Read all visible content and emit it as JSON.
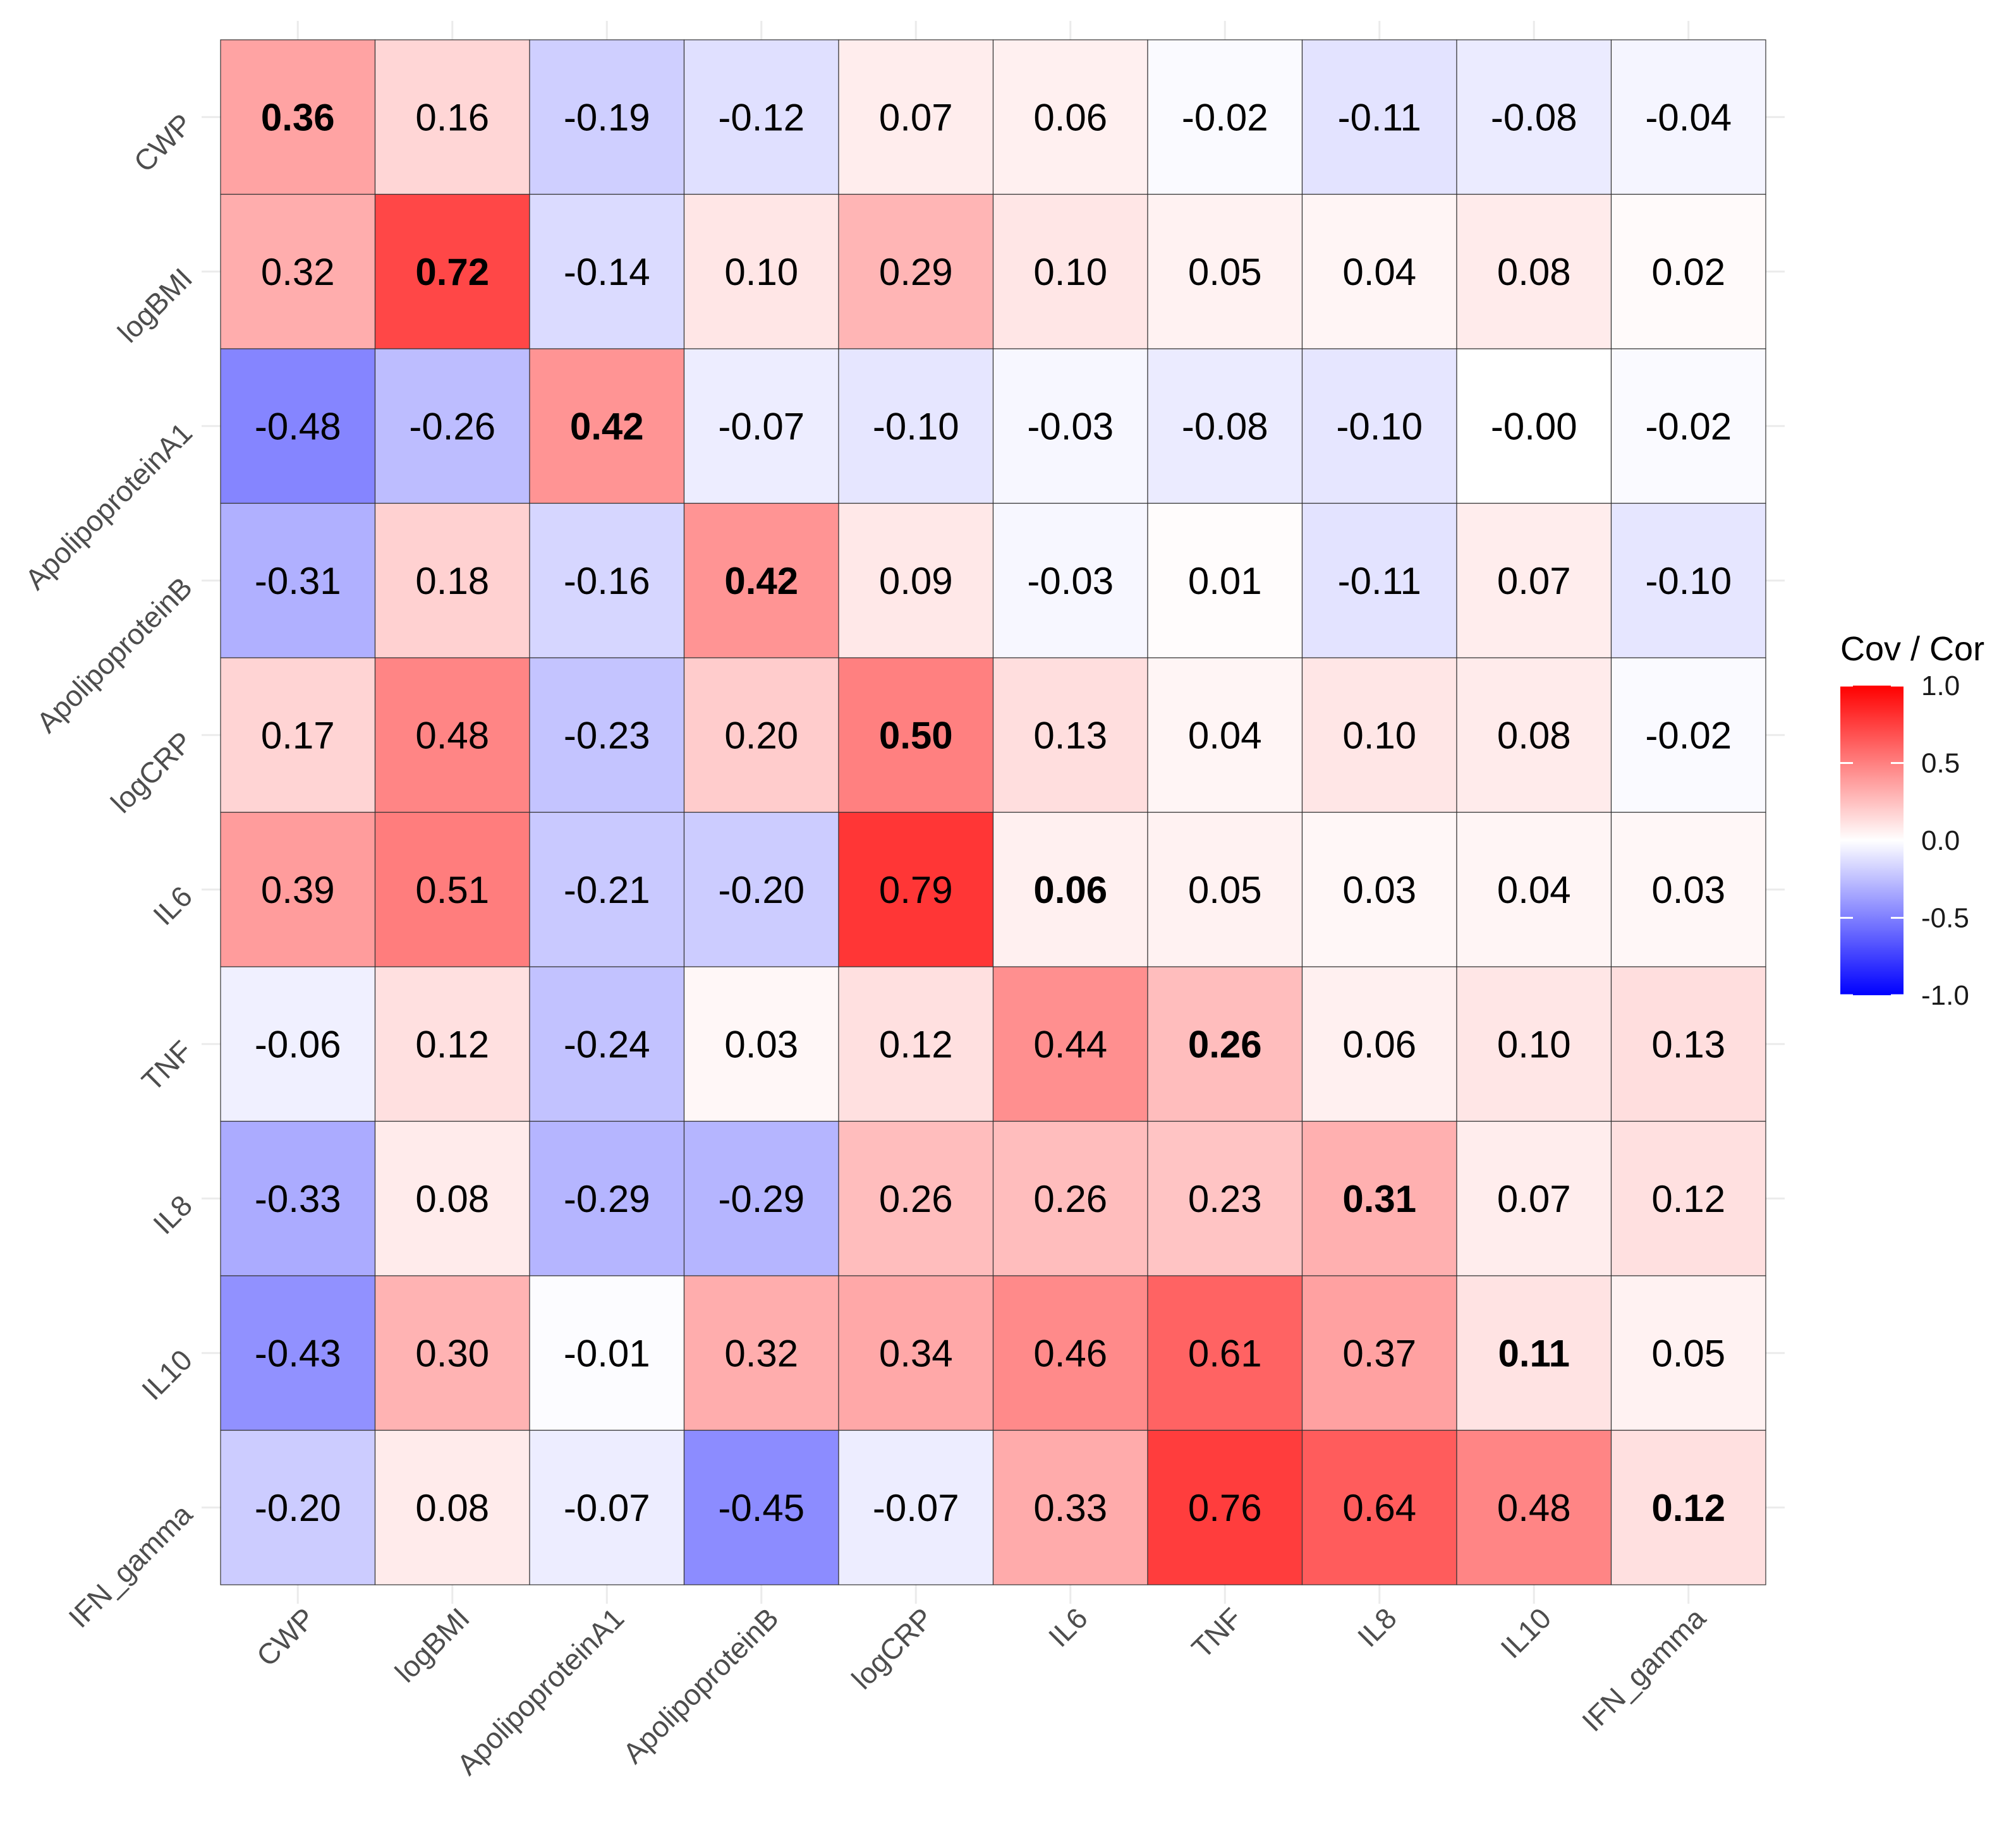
{
  "chart_data": {
    "type": "heatmap",
    "title": "",
    "xlabel": "",
    "ylabel": "",
    "x_categories": [
      "CWP",
      "logBMI",
      "ApolipoproteinA1",
      "ApolipoproteinB",
      "logCRP",
      "IL6",
      "TNF",
      "IL8",
      "IL10",
      "IFN_gamma"
    ],
    "y_categories": [
      "CWP",
      "logBMI",
      "ApolipoproteinA1",
      "ApolipoproteinB",
      "logCRP",
      "IL6",
      "TNF",
      "IL8",
      "IL10",
      "IFN_gamma"
    ],
    "values": [
      [
        0.36,
        0.16,
        -0.19,
        -0.12,
        0.07,
        0.06,
        -0.02,
        -0.11,
        -0.08,
        -0.04
      ],
      [
        0.32,
        0.72,
        -0.14,
        0.1,
        0.29,
        0.1,
        0.05,
        0.04,
        0.08,
        0.02
      ],
      [
        -0.48,
        -0.26,
        0.42,
        -0.07,
        -0.1,
        -0.03,
        -0.08,
        -0.1,
        -0.0,
        -0.02
      ],
      [
        -0.31,
        0.18,
        -0.16,
        0.42,
        0.09,
        -0.03,
        0.01,
        -0.11,
        0.07,
        -0.1
      ],
      [
        0.17,
        0.48,
        -0.23,
        0.2,
        0.5,
        0.13,
        0.04,
        0.1,
        0.08,
        -0.02
      ],
      [
        0.39,
        0.51,
        -0.21,
        -0.2,
        0.79,
        0.06,
        0.05,
        0.03,
        0.04,
        0.03
      ],
      [
        -0.06,
        0.12,
        -0.24,
        0.03,
        0.12,
        0.44,
        0.26,
        0.06,
        0.1,
        0.13
      ],
      [
        -0.33,
        0.08,
        -0.29,
        -0.29,
        0.26,
        0.26,
        0.23,
        0.31,
        0.07,
        0.12
      ],
      [
        -0.43,
        0.3,
        -0.01,
        0.32,
        0.34,
        0.46,
        0.61,
        0.37,
        0.11,
        0.05
      ],
      [
        -0.2,
        0.08,
        -0.07,
        -0.45,
        -0.07,
        0.33,
        0.76,
        0.64,
        0.48,
        0.12
      ]
    ],
    "value_labels": [
      [
        "0.36",
        "0.16",
        "-0.19",
        "-0.12",
        "0.07",
        "0.06",
        "-0.02",
        "-0.11",
        "-0.08",
        "-0.04"
      ],
      [
        "0.32",
        "0.72",
        "-0.14",
        "0.10",
        "0.29",
        "0.10",
        "0.05",
        "0.04",
        "0.08",
        "0.02"
      ],
      [
        "-0.48",
        "-0.26",
        "0.42",
        "-0.07",
        "-0.10",
        "-0.03",
        "-0.08",
        "-0.10",
        "-0.00",
        "-0.02"
      ],
      [
        "-0.31",
        "0.18",
        "-0.16",
        "0.42",
        "0.09",
        "-0.03",
        "0.01",
        "-0.11",
        "0.07",
        "-0.10"
      ],
      [
        "0.17",
        "0.48",
        "-0.23",
        "0.20",
        "0.50",
        "0.13",
        "0.04",
        "0.10",
        "0.08",
        "-0.02"
      ],
      [
        "0.39",
        "0.51",
        "-0.21",
        "-0.20",
        "0.79",
        "0.06",
        "0.05",
        "0.03",
        "0.04",
        "0.03"
      ],
      [
        "-0.06",
        "0.12",
        "-0.24",
        "0.03",
        "0.12",
        "0.44",
        "0.26",
        "0.06",
        "0.10",
        "0.13"
      ],
      [
        "-0.33",
        "0.08",
        "-0.29",
        "-0.29",
        "0.26",
        "0.26",
        "0.23",
        "0.31",
        "0.07",
        "0.12"
      ],
      [
        "-0.43",
        "0.30",
        "-0.01",
        "0.32",
        "0.34",
        "0.46",
        "0.61",
        "0.37",
        "0.11",
        "0.05"
      ],
      [
        "-0.20",
        "0.08",
        "-0.07",
        "-0.45",
        "-0.07",
        "0.33",
        "0.76",
        "0.64",
        "0.48",
        "0.12"
      ]
    ],
    "diagonal_bold": true,
    "legend": {
      "title": "Cov / Cor",
      "position": "right",
      "range": [
        -1.0,
        1.0
      ],
      "ticks": [
        1.0,
        0.5,
        0.0,
        -0.5,
        -1.0
      ],
      "tick_labels": [
        "1.0",
        "0.5",
        "0.0",
        "-0.5",
        "-1.0"
      ]
    },
    "colors": {
      "high": "#FF0000",
      "mid": "#FFFFFF",
      "low": "#0000FF",
      "cell_border": "#333333",
      "grid": "#EBEBEB",
      "text": "#000000",
      "tick_text": "#4D4D4D"
    },
    "grid": true
  }
}
